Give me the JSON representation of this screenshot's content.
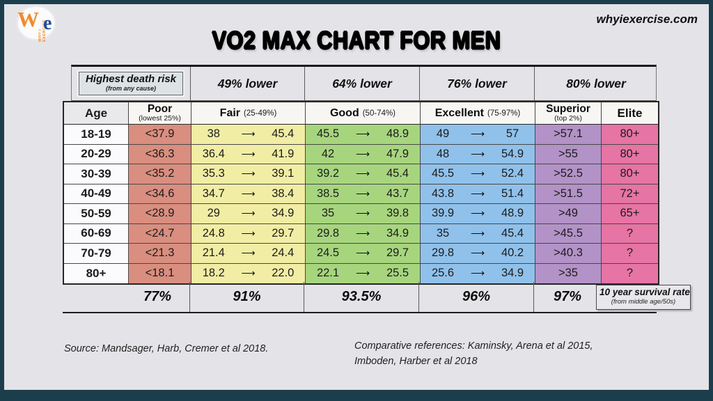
{
  "brand": {
    "w": "W",
    "e": "e",
    "vertical": "WHY I EXERCISE",
    "site": "whyiexercise.com"
  },
  "title": "VO2 MAX CHART FOR MEN",
  "risk_header": {
    "death_risk_label": "Highest death risk",
    "death_risk_sub": "(from any cause)",
    "cols": [
      "49% lower",
      "64% lower",
      "76% lower",
      "80% lower"
    ]
  },
  "columns": [
    {
      "label": "Age",
      "sub": ""
    },
    {
      "label": "Poor",
      "sub": "(lowest 25%)"
    },
    {
      "label": "Fair",
      "sub": "(25-49%)"
    },
    {
      "label": "Good",
      "sub": "(50-74%)"
    },
    {
      "label": "Excellent",
      "sub": "(75-97%)"
    },
    {
      "label": "Superior",
      "sub": "(top 2%)"
    },
    {
      "label": "Elite",
      "sub": ""
    }
  ],
  "rows": [
    {
      "age": "18-19",
      "poor": "<37.9",
      "fair_lo": "38",
      "fair_hi": "45.4",
      "good_lo": "45.5",
      "good_hi": "48.9",
      "exc_lo": "49",
      "exc_hi": "57",
      "superior": ">57.1",
      "elite": "80+"
    },
    {
      "age": "20-29",
      "poor": "<36.3",
      "fair_lo": "36.4",
      "fair_hi": "41.9",
      "good_lo": "42",
      "good_hi": "47.9",
      "exc_lo": "48",
      "exc_hi": "54.9",
      "superior": ">55",
      "elite": "80+"
    },
    {
      "age": "30-39",
      "poor": "<35.2",
      "fair_lo": "35.3",
      "fair_hi": "39.1",
      "good_lo": "39.2",
      "good_hi": "45.4",
      "exc_lo": "45.5",
      "exc_hi": "52.4",
      "superior": ">52.5",
      "elite": "80+"
    },
    {
      "age": "40-49",
      "poor": "<34.6",
      "fair_lo": "34.7",
      "fair_hi": "38.4",
      "good_lo": "38.5",
      "good_hi": "43.7",
      "exc_lo": "43.8",
      "exc_hi": "51.4",
      "superior": ">51.5",
      "elite": "72+"
    },
    {
      "age": "50-59",
      "poor": "<28.9",
      "fair_lo": "29",
      "fair_hi": "34.9",
      "good_lo": "35",
      "good_hi": "39.8",
      "exc_lo": "39.9",
      "exc_hi": "48.9",
      "superior": ">49",
      "elite": "65+"
    },
    {
      "age": "60-69",
      "poor": "<24.7",
      "fair_lo": "24.8",
      "fair_hi": "29.7",
      "good_lo": "29.8",
      "good_hi": "34.9",
      "exc_lo": "35",
      "exc_hi": "45.4",
      "superior": ">45.5",
      "elite": "?"
    },
    {
      "age": "70-79",
      "poor": "<21.3",
      "fair_lo": "21.4",
      "fair_hi": "24.4",
      "good_lo": "24.5",
      "good_hi": "29.7",
      "exc_lo": "29.8",
      "exc_hi": "40.2",
      "superior": ">40.3",
      "elite": "?"
    },
    {
      "age": "80+",
      "poor": "<18.1",
      "fair_lo": "18.2",
      "fair_hi": "22.0",
      "good_lo": "22.1",
      "good_hi": "25.5",
      "exc_lo": "25.6",
      "exc_hi": "34.9",
      "superior": ">35",
      "elite": "?"
    }
  ],
  "survival": {
    "values": [
      "77%",
      "91%",
      "93.5%",
      "96%",
      "97%"
    ],
    "box_label": "10 year survival rate",
    "box_sub": "(from middle age/50s)"
  },
  "footnotes": {
    "source": "Source:  Mandsager, Harb, Cremer et al 2018.",
    "comparative_line1": "Comparative references:  Kaminsky, Arena et al 2015,",
    "comparative_line2": "Imboden, Harber et al 2018"
  },
  "colors": {
    "poor": "#d98e7f",
    "fair": "#f1eda4",
    "good": "#a7d57e",
    "excellent": "#90c1eb",
    "superior": "#b392c7",
    "elite": "#e674a4",
    "frame": "#1c3e4c",
    "background": "#e4e3e7"
  },
  "chart_data": {
    "type": "table",
    "title": "VO2 MAX CHART FOR MEN",
    "columns": [
      "Age",
      "Poor (lowest 25%)",
      "Fair (25-49%)",
      "Good (50-74%)",
      "Excellent (75-97%)",
      "Superior (top 2%)",
      "Elite"
    ],
    "death_risk_reduction_vs_poor": {
      "Fair": "49% lower",
      "Good": "64% lower",
      "Excellent": "76% lower",
      "Superior/Elite": "80% lower"
    },
    "ten_year_survival_rate": {
      "Poor": "77%",
      "Fair": "91%",
      "Good": "93.5%",
      "Excellent": "96%",
      "Superior": "97%"
    },
    "rows": [
      {
        "age": "18-19",
        "poor_below": 37.9,
        "fair": [
          38,
          45.4
        ],
        "good": [
          45.5,
          48.9
        ],
        "excellent": [
          49,
          57
        ],
        "superior_above": 57.1,
        "elite": "80+"
      },
      {
        "age": "20-29",
        "poor_below": 36.3,
        "fair": [
          36.4,
          41.9
        ],
        "good": [
          42,
          47.9
        ],
        "excellent": [
          48,
          54.9
        ],
        "superior_above": 55,
        "elite": "80+"
      },
      {
        "age": "30-39",
        "poor_below": 35.2,
        "fair": [
          35.3,
          39.1
        ],
        "good": [
          39.2,
          45.4
        ],
        "excellent": [
          45.5,
          52.4
        ],
        "superior_above": 52.5,
        "elite": "80+"
      },
      {
        "age": "40-49",
        "poor_below": 34.6,
        "fair": [
          34.7,
          38.4
        ],
        "good": [
          38.5,
          43.7
        ],
        "excellent": [
          43.8,
          51.4
        ],
        "superior_above": 51.5,
        "elite": "72+"
      },
      {
        "age": "50-59",
        "poor_below": 28.9,
        "fair": [
          29,
          34.9
        ],
        "good": [
          35,
          39.8
        ],
        "excellent": [
          39.9,
          48.9
        ],
        "superior_above": 49,
        "elite": "65+"
      },
      {
        "age": "60-69",
        "poor_below": 24.7,
        "fair": [
          24.8,
          29.7
        ],
        "good": [
          29.8,
          34.9
        ],
        "excellent": [
          35,
          45.4
        ],
        "superior_above": 45.5,
        "elite": "?"
      },
      {
        "age": "70-79",
        "poor_below": 21.3,
        "fair": [
          21.4,
          24.4
        ],
        "good": [
          24.5,
          29.7
        ],
        "excellent": [
          29.8,
          40.2
        ],
        "superior_above": 40.3,
        "elite": "?"
      },
      {
        "age": "80+",
        "poor_below": 18.1,
        "fair": [
          18.2,
          22.0
        ],
        "good": [
          22.1,
          25.5
        ],
        "excellent": [
          25.6,
          34.9
        ],
        "superior_above": 35,
        "elite": "?"
      }
    ]
  }
}
